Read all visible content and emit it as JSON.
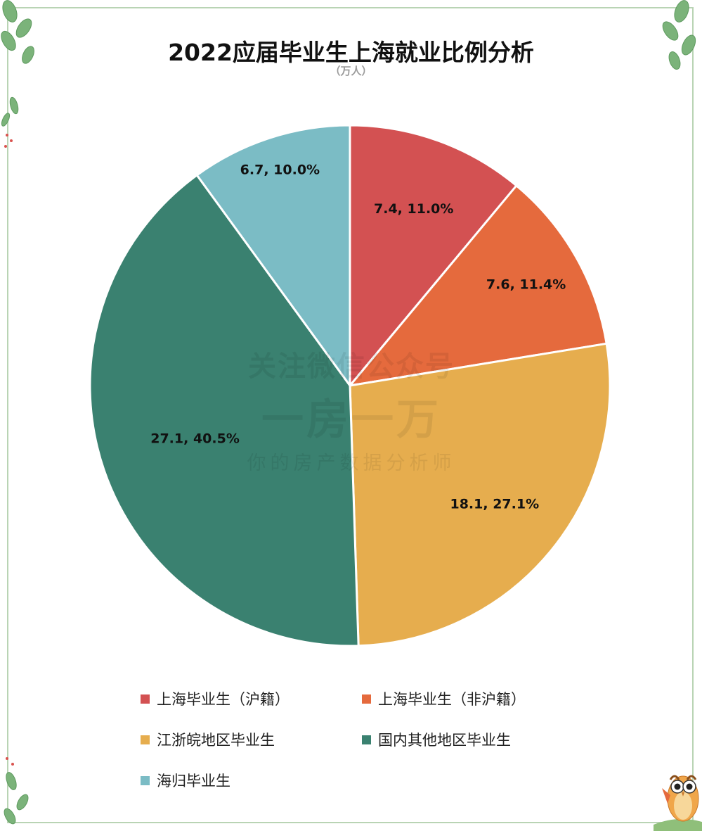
{
  "title": "2022应届毕业生上海就业比例分析",
  "subtitle": "（万人）",
  "watermark": {
    "line1": "关注微信公众号",
    "line2": "一房一万",
    "line3": "你的房产数据分析师"
  },
  "chart_data": {
    "type": "pie",
    "title": "2022应届毕业生上海就业比例分析",
    "subtitle": "（万人）",
    "unit": "万人",
    "start_angle_deg": 0,
    "direction": "clockwise",
    "legend_position": "bottom",
    "slices": [
      {
        "name": "上海毕业生（沪籍）",
        "value": 7.4,
        "percent": 11.0,
        "label": "7.4, 11.0%",
        "color": "#d35152"
      },
      {
        "name": "上海毕业生（非沪籍）",
        "value": 7.6,
        "percent": 11.4,
        "label": "7.6, 11.4%",
        "color": "#e56a3d"
      },
      {
        "name": "江浙皖地区毕业生",
        "value": 18.1,
        "percent": 27.1,
        "label": "18.1, 27.1%",
        "color": "#e6ad4e"
      },
      {
        "name": "国内其他地区毕业生",
        "value": 27.1,
        "percent": 40.5,
        "label": "27.1, 40.5%",
        "color": "#3a8170"
      },
      {
        "name": "海归毕业生",
        "value": 6.7,
        "percent": 10.0,
        "label": "6.7, 10.0%",
        "color": "#7bbcc5"
      }
    ]
  },
  "colors": {
    "frame": "#b9d4b4",
    "leaf": "#7bb37a",
    "leaf_dark": "#5e9a5f"
  },
  "icons": [
    "leaf-decoration-icon",
    "owl-mascot-icon"
  ]
}
